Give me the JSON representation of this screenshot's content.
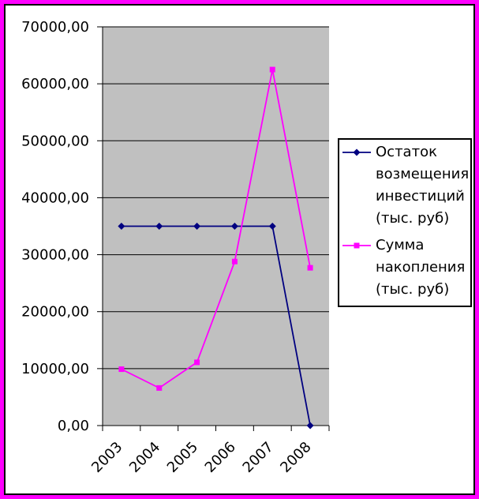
{
  "frame": {
    "outer_border_color": "#ff00ff",
    "inner_border_color": "#000000",
    "background_color": "#ffffff"
  },
  "chart_data": {
    "type": "line",
    "title": "",
    "xlabel": "",
    "ylabel": "",
    "categories": [
      "2003",
      "2004",
      "2005",
      "2006",
      "2007",
      "2008"
    ],
    "series": [
      {
        "name": "Остаток возмещения инвестиций (тыс. руб)",
        "values": [
          35000,
          35000,
          35000,
          35000,
          35000,
          0
        ],
        "color": "#000080",
        "marker": "diamond"
      },
      {
        "name": "Сумма накопления (тыс. руб)",
        "values": [
          9900,
          6600,
          11100,
          28800,
          62500,
          27700
        ],
        "color": "#ff00ff",
        "marker": "square"
      }
    ],
    "ylim": [
      0,
      70000
    ],
    "ytick_step": 10000,
    "ytick_labels": [
      "0,00",
      "10000,00",
      "20000,00",
      "30000,00",
      "40000,00",
      "50000,00",
      "60000,00",
      "70000,00"
    ],
    "x_tick_label_rotation": -45,
    "grid": true,
    "plot_background": "#c0c0c0",
    "gridline_color": "#000000",
    "axis_color": "#000000",
    "text_color": "#000000",
    "legend_position": "right"
  }
}
